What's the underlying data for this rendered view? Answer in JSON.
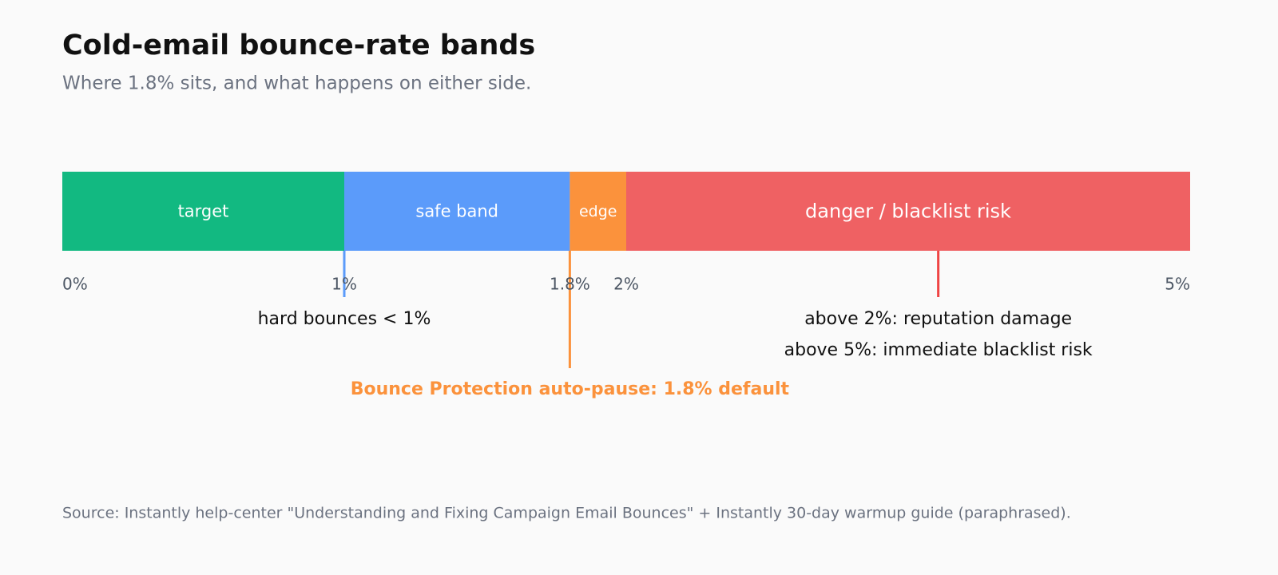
{
  "chart_data": {
    "type": "stacked-band",
    "title": "Cold-email bounce-rate bands",
    "subtitle": "Where 1.8% sits, and what happens on either side.",
    "series": [
      {
        "name": "target",
        "color": "#12b981",
        "values": [
          1
        ]
      },
      {
        "name": "safe band",
        "color": "#5b9bfa",
        "values": [
          0.8
        ]
      },
      {
        "name": "edge",
        "color": "#fb923c",
        "values": [
          0.2
        ]
      },
      {
        "name": "danger / blacklist risk",
        "color": "#ef6163",
        "values": [
          3
        ]
      }
    ],
    "xlim": [
      0,
      5
    ],
    "scale_break": 2,
    "xticks": [
      {
        "value": 0,
        "label": "0%"
      },
      {
        "value": 1,
        "label": "1%"
      },
      {
        "value": 1.8,
        "label": "1.8%"
      },
      {
        "value": 2,
        "label": "2%"
      },
      {
        "value": 5,
        "label": "5%"
      }
    ],
    "annotations": [
      {
        "x": 1,
        "color": "#5b9bfa",
        "lines": [
          "hard bounces < 1%"
        ]
      },
      {
        "x": 1.8,
        "color": "#fb923c",
        "bold": true,
        "lines": [
          "Bounce Protection auto-pause: 1.8% default"
        ]
      },
      {
        "x": 3.66,
        "color": "#ef4444",
        "lines": [
          "above 2%: reputation damage",
          "above 5%: immediate blacklist risk"
        ]
      }
    ],
    "source": "Source: Instantly help-center \"Understanding and Fixing Campaign Email Bounces\" + Instantly 30-day warmup guide (paraphrased)."
  }
}
